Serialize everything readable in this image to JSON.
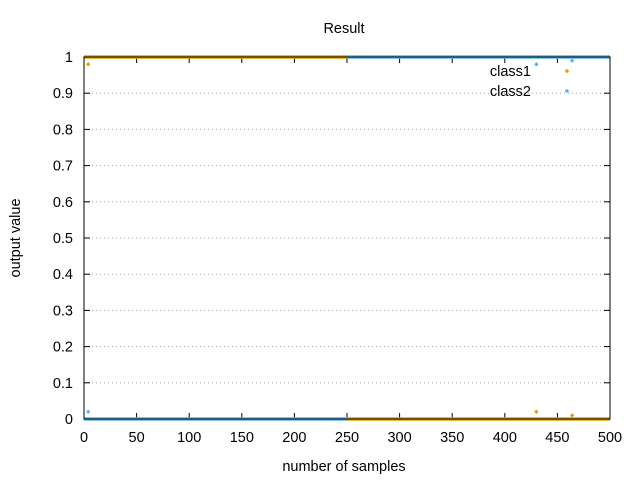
{
  "chart_data": {
    "type": "scatter",
    "title": "Result",
    "xlabel": "number of samples",
    "ylabel": "output value",
    "xlim": [
      0,
      500
    ],
    "ylim": [
      0,
      1
    ],
    "xticks": [
      "0",
      "50",
      "100",
      "150",
      "200",
      "250",
      "300",
      "350",
      "400",
      "450",
      "500"
    ],
    "yticks": [
      "0",
      "0.1",
      "0.2",
      "0.3",
      "0.4",
      "0.5",
      "0.6",
      "0.7",
      "0.8",
      "0.9",
      "1"
    ],
    "grid": "horizontal dotted",
    "legend_position": "top-right",
    "series": [
      {
        "name": "class1",
        "color": "#e69f00",
        "dense_runs": [
          {
            "x_from": 0,
            "x_to": 250,
            "y": 1
          },
          {
            "x_from": 250,
            "x_to": 500,
            "y": 0
          }
        ],
        "outliers": [
          {
            "x": 4,
            "y": 0.98
          },
          {
            "x": 430,
            "y": 0.02
          },
          {
            "x": 464,
            "y": 0.01
          }
        ]
      },
      {
        "name": "class2",
        "color": "#56b4e9",
        "dense_runs": [
          {
            "x_from": 0,
            "x_to": 250,
            "y": 0
          },
          {
            "x_from": 250,
            "x_to": 500,
            "y": 1
          }
        ],
        "outliers": [
          {
            "x": 4,
            "y": 0.02
          },
          {
            "x": 430,
            "y": 0.98
          },
          {
            "x": 464,
            "y": 0.99
          }
        ]
      }
    ]
  }
}
